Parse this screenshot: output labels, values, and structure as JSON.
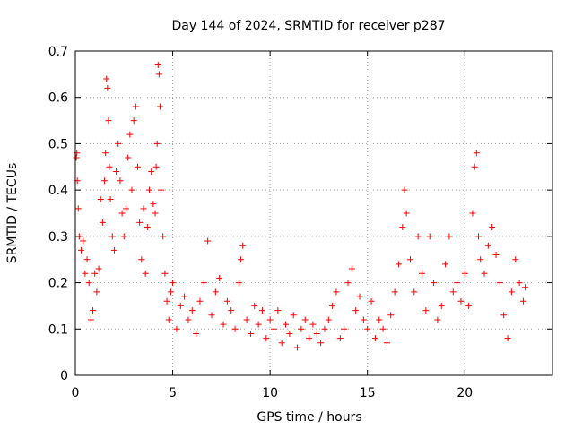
{
  "chart_data": {
    "type": "scatter",
    "title": "Day 144 of 2024, SRMTID for receiver p287",
    "xlabel": "GPS time / hours",
    "ylabel": "SRMTID / TECUs",
    "xlim": [
      0,
      24.5
    ],
    "ylim": [
      0,
      0.7
    ],
    "xticks": [
      0,
      5,
      10,
      15,
      20
    ],
    "yticks": [
      0,
      0.1,
      0.2,
      0.3,
      0.4,
      0.5,
      0.6,
      0.7
    ],
    "grid": true,
    "marker": "plus",
    "color": "#ff0000",
    "series": [
      {
        "name": "SRMTID",
        "points": [
          [
            0.05,
            0.47
          ],
          [
            0.08,
            0.48
          ],
          [
            0.1,
            0.42
          ],
          [
            0.15,
            0.36
          ],
          [
            0.2,
            0.3
          ],
          [
            0.3,
            0.27
          ],
          [
            0.4,
            0.29
          ],
          [
            0.5,
            0.22
          ],
          [
            0.6,
            0.25
          ],
          [
            0.7,
            0.2
          ],
          [
            0.8,
            0.12
          ],
          [
            0.9,
            0.14
          ],
          [
            1.0,
            0.22
          ],
          [
            1.1,
            0.18
          ],
          [
            1.2,
            0.23
          ],
          [
            1.3,
            0.38
          ],
          [
            1.4,
            0.33
          ],
          [
            1.5,
            0.42
          ],
          [
            1.55,
            0.48
          ],
          [
            1.6,
            0.64
          ],
          [
            1.65,
            0.62
          ],
          [
            1.7,
            0.55
          ],
          [
            1.75,
            0.45
          ],
          [
            1.8,
            0.38
          ],
          [
            1.9,
            0.3
          ],
          [
            2.0,
            0.27
          ],
          [
            2.1,
            0.44
          ],
          [
            2.2,
            0.5
          ],
          [
            2.3,
            0.42
          ],
          [
            2.4,
            0.35
          ],
          [
            2.5,
            0.3
          ],
          [
            2.6,
            0.36
          ],
          [
            2.7,
            0.47
          ],
          [
            2.8,
            0.52
          ],
          [
            2.9,
            0.4
          ],
          [
            3.0,
            0.55
          ],
          [
            3.1,
            0.58
          ],
          [
            3.2,
            0.45
          ],
          [
            3.3,
            0.33
          ],
          [
            3.4,
            0.25
          ],
          [
            3.5,
            0.36
          ],
          [
            3.6,
            0.22
          ],
          [
            3.7,
            0.32
          ],
          [
            3.8,
            0.4
          ],
          [
            3.9,
            0.44
          ],
          [
            4.0,
            0.37
          ],
          [
            4.1,
            0.35
          ],
          [
            4.15,
            0.45
          ],
          [
            4.2,
            0.5
          ],
          [
            4.25,
            0.67
          ],
          [
            4.3,
            0.65
          ],
          [
            4.35,
            0.58
          ],
          [
            4.4,
            0.4
          ],
          [
            4.5,
            0.3
          ],
          [
            4.6,
            0.22
          ],
          [
            4.7,
            0.16
          ],
          [
            4.8,
            0.12
          ],
          [
            4.9,
            0.18
          ],
          [
            5.0,
            0.2
          ],
          [
            5.2,
            0.1
          ],
          [
            5.4,
            0.15
          ],
          [
            5.6,
            0.17
          ],
          [
            5.8,
            0.12
          ],
          [
            6.0,
            0.14
          ],
          [
            6.2,
            0.09
          ],
          [
            6.4,
            0.16
          ],
          [
            6.6,
            0.2
          ],
          [
            6.8,
            0.29
          ],
          [
            7.0,
            0.13
          ],
          [
            7.2,
            0.18
          ],
          [
            7.4,
            0.21
          ],
          [
            7.6,
            0.11
          ],
          [
            7.8,
            0.16
          ],
          [
            8.0,
            0.14
          ],
          [
            8.2,
            0.1
          ],
          [
            8.4,
            0.2
          ],
          [
            8.5,
            0.25
          ],
          [
            8.6,
            0.28
          ],
          [
            8.8,
            0.12
          ],
          [
            9.0,
            0.09
          ],
          [
            9.2,
            0.15
          ],
          [
            9.4,
            0.11
          ],
          [
            9.6,
            0.14
          ],
          [
            9.8,
            0.08
          ],
          [
            10.0,
            0.12
          ],
          [
            10.2,
            0.1
          ],
          [
            10.4,
            0.14
          ],
          [
            10.6,
            0.07
          ],
          [
            10.8,
            0.11
          ],
          [
            11.0,
            0.09
          ],
          [
            11.2,
            0.13
          ],
          [
            11.4,
            0.06
          ],
          [
            11.6,
            0.1
          ],
          [
            11.8,
            0.12
          ],
          [
            12.0,
            0.08
          ],
          [
            12.2,
            0.11
          ],
          [
            12.4,
            0.09
          ],
          [
            12.6,
            0.07
          ],
          [
            12.8,
            0.1
          ],
          [
            13.0,
            0.12
          ],
          [
            13.2,
            0.15
          ],
          [
            13.4,
            0.18
          ],
          [
            13.6,
            0.08
          ],
          [
            13.8,
            0.1
          ],
          [
            14.0,
            0.2
          ],
          [
            14.2,
            0.23
          ],
          [
            14.4,
            0.14
          ],
          [
            14.6,
            0.17
          ],
          [
            14.8,
            0.12
          ],
          [
            15.0,
            0.1
          ],
          [
            15.2,
            0.16
          ],
          [
            15.4,
            0.08
          ],
          [
            15.6,
            0.12
          ],
          [
            15.8,
            0.1
          ],
          [
            16.0,
            0.07
          ],
          [
            16.2,
            0.13
          ],
          [
            16.4,
            0.18
          ],
          [
            16.6,
            0.24
          ],
          [
            16.8,
            0.32
          ],
          [
            16.9,
            0.4
          ],
          [
            17.0,
            0.35
          ],
          [
            17.2,
            0.25
          ],
          [
            17.4,
            0.18
          ],
          [
            17.6,
            0.3
          ],
          [
            17.8,
            0.22
          ],
          [
            18.0,
            0.14
          ],
          [
            18.2,
            0.3
          ],
          [
            18.4,
            0.2
          ],
          [
            18.6,
            0.12
          ],
          [
            18.8,
            0.15
          ],
          [
            19.0,
            0.24
          ],
          [
            19.2,
            0.3
          ],
          [
            19.4,
            0.18
          ],
          [
            19.6,
            0.2
          ],
          [
            19.8,
            0.16
          ],
          [
            20.0,
            0.22
          ],
          [
            20.2,
            0.15
          ],
          [
            20.4,
            0.35
          ],
          [
            20.5,
            0.45
          ],
          [
            20.6,
            0.48
          ],
          [
            20.7,
            0.3
          ],
          [
            20.8,
            0.25
          ],
          [
            21.0,
            0.22
          ],
          [
            21.2,
            0.28
          ],
          [
            21.4,
            0.32
          ],
          [
            21.6,
            0.26
          ],
          [
            21.8,
            0.2
          ],
          [
            22.0,
            0.13
          ],
          [
            22.2,
            0.08
          ],
          [
            22.4,
            0.18
          ],
          [
            22.6,
            0.25
          ],
          [
            22.8,
            0.2
          ],
          [
            23.0,
            0.16
          ],
          [
            23.1,
            0.19
          ]
        ]
      }
    ]
  }
}
